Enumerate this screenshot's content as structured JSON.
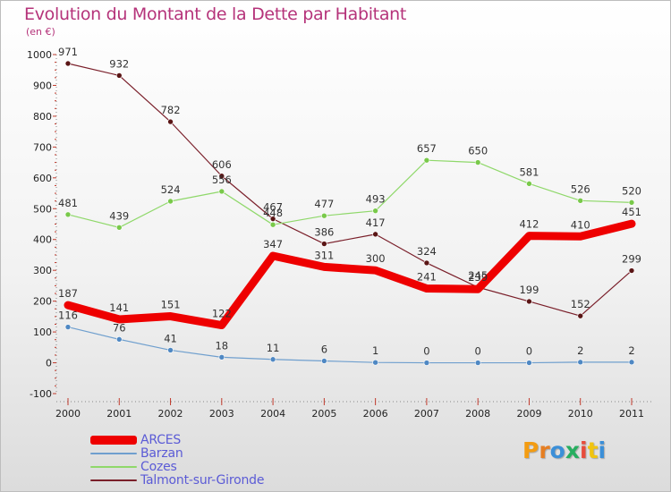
{
  "header": {
    "title": "Evolution du Montant de la Dette par Habitant",
    "subtitle": "(en €)"
  },
  "chart_data": {
    "type": "line",
    "title": "Evolution du Montant de la Dette par Habitant",
    "ylabel": "(en €)",
    "xlabel": "",
    "x": [
      "2000",
      "2001",
      "2002",
      "2003",
      "2004",
      "2005",
      "2006",
      "2007",
      "2008",
      "2009",
      "2010",
      "2011"
    ],
    "ylim": [
      -100,
      1000
    ],
    "yticks": [
      -100,
      0,
      100,
      200,
      300,
      400,
      500,
      600,
      700,
      800,
      900,
      1000
    ],
    "grid": false,
    "legend": "bottom-left",
    "series": [
      {
        "name": "Talmont-sur-Gironde",
        "color": "#7a1f2a",
        "marker": "#5a1515",
        "width": 1.2,
        "values": [
          971,
          932,
          782,
          606,
          467,
          386,
          417,
          324,
          245,
          199,
          152,
          299
        ]
      },
      {
        "name": "Cozes",
        "color": "#8fd86a",
        "marker": "#79c94a",
        "width": 1.2,
        "values": [
          481,
          439,
          524,
          556,
          448,
          477,
          493,
          657,
          650,
          581,
          526,
          520
        ]
      },
      {
        "name": "Barzan",
        "color": "#6f9fce",
        "marker": "#4f88c3",
        "width": 1.2,
        "values": [
          116,
          76,
          41,
          18,
          11,
          6,
          1,
          0,
          0,
          0,
          2,
          2
        ]
      },
      {
        "name": "ARCES",
        "color": "#ee0000",
        "marker": "#ee0000",
        "width": 9,
        "values": [
          187,
          141,
          151,
          122,
          347,
          311,
          300,
          241,
          239,
          412,
          410,
          451
        ]
      }
    ]
  },
  "legend": {
    "items": [
      {
        "label": "ARCES",
        "color": "#ee0000",
        "thickness": 9
      },
      {
        "label": "Barzan",
        "color": "#6f9fce",
        "thickness": 2
      },
      {
        "label": "Cozes",
        "color": "#8fd86a",
        "thickness": 2
      },
      {
        "label": "Talmont-sur-Gironde",
        "color": "#7a1f2a",
        "thickness": 2
      }
    ]
  },
  "logo": {
    "letters": [
      "P",
      "r",
      "o",
      "x",
      "i",
      "t",
      "i"
    ],
    "colors": [
      "#f39c12",
      "#e67e22",
      "#3b8fd8",
      "#27ae60",
      "#e74c3c",
      "#f1c40f",
      "#3b8fd8"
    ]
  }
}
